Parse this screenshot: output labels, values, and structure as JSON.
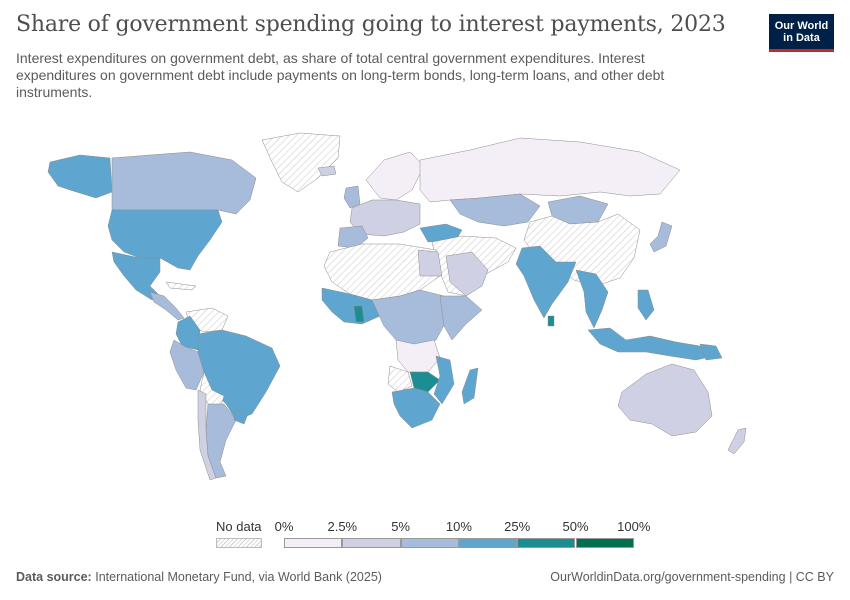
{
  "header": {
    "title": "Share of government spending going to interest payments, 2023",
    "subtitle": "Interest expenditures on government debt, as share of total central government expenditures. Interest expenditures on government debt include payments on long-term bonds, long-term loans, and other debt instruments."
  },
  "logo": {
    "line1": "Our World",
    "line2": "in Data"
  },
  "legend": {
    "no_data_label": "No data",
    "bin_labels": [
      "0%",
      "2.5%",
      "5%",
      "10%",
      "25%",
      "50%",
      "100%"
    ],
    "bin_colors": [
      "#f4eff7",
      "#cfd0e4",
      "#a7bcda",
      "#5ea6cf",
      "#1c8e93",
      "#00704f"
    ],
    "no_data_color": "#ececec"
  },
  "footer": {
    "source_label": "Data source:",
    "source_text": "International Monetary Fund, via World Bank (2025)",
    "url_text": "OurWorldinData.org/government-spending | CC BY"
  }
}
